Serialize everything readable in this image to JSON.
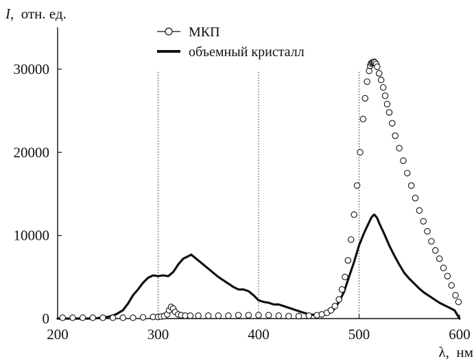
{
  "chart_data": {
    "type": "line",
    "title": "",
    "ylabel": "I,  отн. ед.",
    "ylabel_italic_part": "I",
    "ylabel_rest": ",  отн. ед.",
    "xlabel": "λ,  нм",
    "xlim": [
      200,
      600
    ],
    "ylim": [
      0,
      35000
    ],
    "xticks": [
      200,
      300,
      400,
      500,
      600
    ],
    "yticks": [
      0,
      10000,
      20000,
      30000
    ],
    "vertical_reference_lines": [
      300,
      400,
      500
    ],
    "legend_position": "top-center",
    "grid": false,
    "series": [
      {
        "name": "МКП",
        "style": "open-circles",
        "color": "#111111",
        "x": [
          205,
          215,
          225,
          235,
          245,
          255,
          265,
          275,
          285,
          295,
          300,
          303,
          306,
          309,
          311,
          313,
          315,
          317,
          320,
          323,
          327,
          332,
          340,
          350,
          360,
          370,
          380,
          390,
          400,
          410,
          420,
          430,
          440,
          450,
          458,
          463,
          468,
          472,
          476,
          480,
          483,
          486,
          489,
          492,
          495,
          498,
          501,
          504,
          506,
          508,
          510,
          511,
          512,
          513,
          514,
          515,
          516,
          517,
          518,
          520,
          522,
          524,
          526,
          528,
          530,
          533,
          536,
          540,
          544,
          548,
          552,
          556,
          560,
          564,
          568,
          572,
          576,
          580,
          584,
          588,
          592,
          596,
          599
        ],
        "y": [
          100,
          100,
          100,
          100,
          100,
          100,
          100,
          100,
          150,
          200,
          200,
          250,
          300,
          500,
          1000,
          1400,
          1200,
          800,
          500,
          400,
          350,
          350,
          350,
          350,
          350,
          350,
          400,
          400,
          400,
          400,
          350,
          300,
          300,
          350,
          400,
          500,
          700,
          1000,
          1500,
          2300,
          3500,
          5000,
          7000,
          9500,
          12500,
          16000,
          20000,
          24000,
          26500,
          28500,
          29800,
          30400,
          30700,
          30800,
          30850,
          30900,
          30800,
          30600,
          30300,
          29500,
          28700,
          27800,
          26800,
          25800,
          24800,
          23500,
          22000,
          20500,
          19000,
          17500,
          16000,
          14500,
          13000,
          11700,
          10500,
          9300,
          8200,
          7200,
          6100,
          5100,
          4000,
          2800,
          2000
        ]
      },
      {
        "name": "объемный кристалл",
        "style": "thick-line",
        "color": "#111111",
        "x": [
          200,
          210,
          220,
          230,
          240,
          250,
          258,
          265,
          270,
          275,
          280,
          285,
          290,
          295,
          300,
          305,
          310,
          315,
          320,
          325,
          330,
          333,
          336,
          340,
          345,
          350,
          355,
          360,
          365,
          370,
          375,
          380,
          385,
          390,
          395,
          400,
          405,
          410,
          415,
          420,
          430,
          440,
          450,
          460,
          465,
          470,
          475,
          480,
          485,
          490,
          495,
          500,
          505,
          510,
          512,
          514,
          515,
          516,
          518,
          520,
          525,
          530,
          535,
          540,
          545,
          550,
          555,
          560,
          565,
          570,
          575,
          580,
          585,
          590,
          595,
          600
        ],
        "y": [
          0,
          0,
          0,
          0,
          50,
          200,
          500,
          1000,
          1800,
          2800,
          3500,
          4300,
          4900,
          5200,
          5100,
          5200,
          5100,
          5600,
          6500,
          7200,
          7500,
          7700,
          7400,
          7000,
          6500,
          6000,
          5500,
          5000,
          4600,
          4200,
          3800,
          3500,
          3500,
          3300,
          2800,
          2200,
          2000,
          1900,
          1700,
          1700,
          1300,
          900,
          500,
          400,
          450,
          650,
          1100,
          2000,
          3200,
          5000,
          6800,
          8800,
          10300,
          11600,
          12100,
          12400,
          12500,
          12400,
          12100,
          11500,
          10200,
          8800,
          7600,
          6500,
          5500,
          4800,
          4200,
          3600,
          3100,
          2700,
          2300,
          1900,
          1600,
          1300,
          1000,
          0
        ]
      }
    ]
  }
}
